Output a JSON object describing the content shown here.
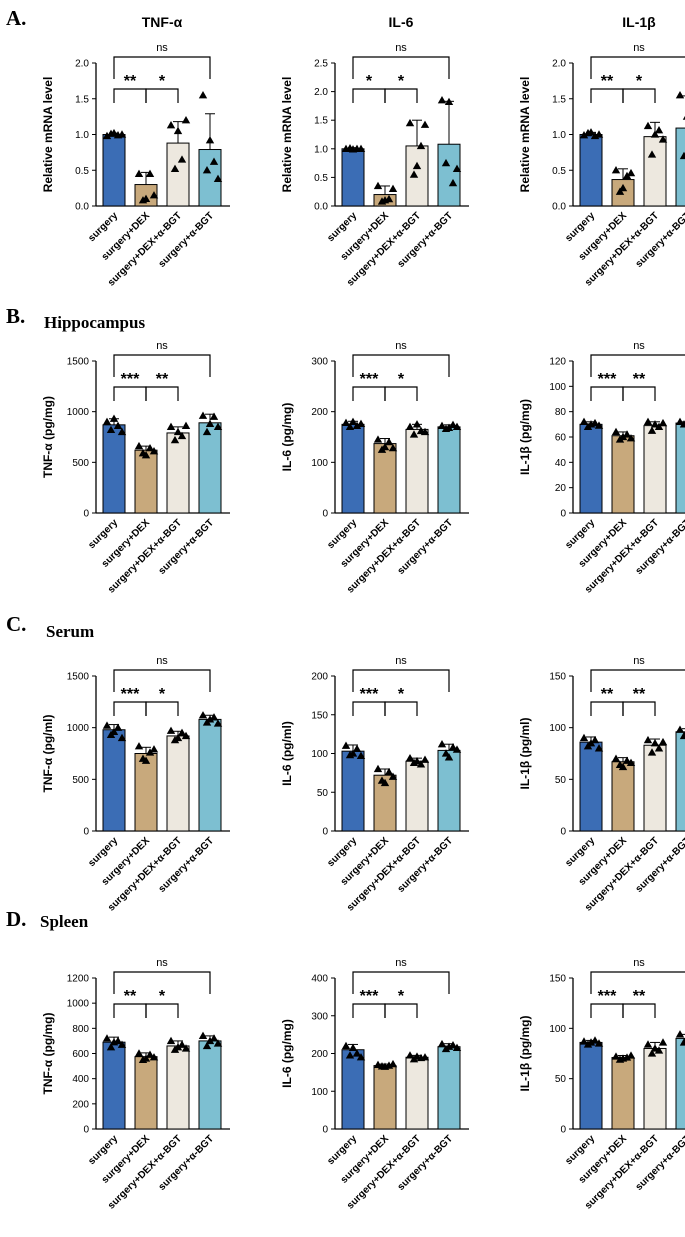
{
  "panels": [
    {
      "letter": "A.",
      "title": ""
    },
    {
      "letter": "B.",
      "title": "Hippocampus"
    },
    {
      "letter": "C.",
      "title": "Serum"
    },
    {
      "letter": "D.",
      "title": "Spleen"
    }
  ],
  "colors": {
    "surgery": "#3b6db5",
    "dex": "#c8a97c",
    "dex_bgt": "#ede8df",
    "bgt": "#7dbfd1"
  },
  "chart_data": [
    {
      "panel": "A",
      "type": "bar",
      "title": "TNF-α",
      "ylabel": "Relative mRNA level",
      "categories": [
        "surgery",
        "surgery+DEX",
        "surgery+DEX+α-BGT",
        "surgery+α-BGT"
      ],
      "values": [
        1.0,
        0.3,
        0.88,
        0.79
      ],
      "errors": [
        0.02,
        0.17,
        0.3,
        0.5
      ],
      "points": [
        [
          0.98,
          1.01,
          1.02,
          0.99,
          1.0
        ],
        [
          0.45,
          0.08,
          0.1,
          0.45,
          0.15
        ],
        [
          1.13,
          0.52,
          1.05,
          0.65,
          1.2
        ],
        [
          1.55,
          0.5,
          0.92,
          0.62,
          0.38
        ]
      ],
      "ylim": [
        0,
        2.0
      ],
      "ticks": [
        "0.0",
        "0.5",
        "1.0",
        "1.5",
        "2.0"
      ],
      "significance": [
        {
          "from": 0,
          "to": 1,
          "label": "**"
        },
        {
          "from": 1,
          "to": 2,
          "label": "*"
        },
        {
          "from": 0,
          "to": 3,
          "label": "ns"
        }
      ]
    },
    {
      "panel": "A",
      "type": "bar",
      "title": "IL-6",
      "ylabel": "Relative mRNA level",
      "categories": [
        "surgery",
        "surgery+DEX",
        "surgery+DEX+α-BGT",
        "surgery+α-BGT"
      ],
      "values": [
        1.0,
        0.2,
        1.05,
        1.08
      ],
      "errors": [
        0.02,
        0.15,
        0.45,
        0.75
      ],
      "points": [
        [
          1.0,
          1.01,
          0.99,
          1.0,
          1.0
        ],
        [
          0.35,
          0.08,
          0.1,
          0.12,
          0.3
        ],
        [
          1.45,
          0.55,
          0.7,
          1.05,
          1.42
        ],
        [
          1.85,
          0.75,
          1.82,
          0.4,
          0.65
        ]
      ],
      "ylim": [
        0,
        2.5
      ],
      "ticks": [
        "0.0",
        "0.5",
        "1.0",
        "1.5",
        "2.0",
        "2.5"
      ],
      "significance": [
        {
          "from": 0,
          "to": 1,
          "label": "*"
        },
        {
          "from": 1,
          "to": 2,
          "label": "*"
        },
        {
          "from": 0,
          "to": 3,
          "label": "ns"
        }
      ]
    },
    {
      "panel": "A",
      "type": "bar",
      "title": "IL-1β",
      "ylabel": "Relative mRNA level",
      "categories": [
        "surgery",
        "surgery+DEX",
        "surgery+DEX+α-BGT",
        "surgery+α-BGT"
      ],
      "values": [
        1.0,
        0.37,
        0.97,
        1.09
      ],
      "errors": [
        0.03,
        0.15,
        0.2,
        0.45
      ],
      "points": [
        [
          0.99,
          1.02,
          1.03,
          0.98,
          1.0
        ],
        [
          0.5,
          0.2,
          0.25,
          0.42,
          0.46
        ],
        [
          1.12,
          0.72,
          1.0,
          1.06,
          0.93
        ],
        [
          1.55,
          0.7,
          1.25,
          1.1,
          0.68
        ]
      ],
      "ylim": [
        0,
        2.0
      ],
      "ticks": [
        "0.0",
        "0.5",
        "1.0",
        "1.5",
        "2.0"
      ],
      "significance": [
        {
          "from": 0,
          "to": 1,
          "label": "**"
        },
        {
          "from": 1,
          "to": 2,
          "label": "*"
        },
        {
          "from": 0,
          "to": 3,
          "label": "ns"
        }
      ]
    },
    {
      "panel": "B",
      "type": "bar",
      "title": "",
      "ylabel": "TNF-α (pg/mg)",
      "categories": [
        "surgery",
        "surgery+DEX",
        "surgery+DEX+α-BGT",
        "surgery+α-BGT"
      ],
      "values": [
        870,
        620,
        790,
        890
      ],
      "errors": [
        60,
        40,
        60,
        85
      ],
      "points": [
        [
          900,
          820,
          930,
          860,
          800
        ],
        [
          660,
          590,
          570,
          640,
          610
        ],
        [
          850,
          720,
          800,
          760,
          860
        ],
        [
          960,
          800,
          880,
          950,
          850
        ]
      ],
      "ylim": [
        0,
        1500
      ],
      "ticks": [
        "0",
        "500",
        "1000",
        "1500"
      ],
      "significance": [
        {
          "from": 0,
          "to": 1,
          "label": "***"
        },
        {
          "from": 1,
          "to": 2,
          "label": "**"
        },
        {
          "from": 0,
          "to": 3,
          "label": "ns"
        }
      ]
    },
    {
      "panel": "B",
      "type": "bar",
      "title": "",
      "ylabel": "IL-6 (pg/mg)",
      "categories": [
        "surgery",
        "surgery+DEX",
        "surgery+DEX+α-BGT",
        "surgery+α-BGT"
      ],
      "values": [
        175,
        137,
        165,
        170
      ],
      "errors": [
        6,
        10,
        10,
        4
      ],
      "points": [
        [
          178,
          170,
          180,
          172,
          176
        ],
        [
          145,
          125,
          130,
          140,
          128
        ],
        [
          170,
          155,
          175,
          162,
          160
        ],
        [
          172,
          166,
          168,
          174,
          170
        ]
      ],
      "ylim": [
        0,
        300
      ],
      "ticks": [
        "0",
        "100",
        "200",
        "300"
      ],
      "significance": [
        {
          "from": 0,
          "to": 1,
          "label": "***"
        },
        {
          "from": 1,
          "to": 2,
          "label": "*"
        },
        {
          "from": 0,
          "to": 3,
          "label": "ns"
        }
      ]
    },
    {
      "panel": "B",
      "type": "bar",
      "title": "",
      "ylabel": "IL-1β (pg/mg)",
      "categories": [
        "surgery",
        "surgery+DEX",
        "surgery+DEX+α-BGT",
        "surgery+α-BGT"
      ],
      "values": [
        70,
        61,
        69,
        71
      ],
      "errors": [
        2,
        3,
        3,
        1
      ],
      "points": [
        [
          72,
          68,
          70,
          71,
          69
        ],
        [
          64,
          58,
          60,
          62,
          59
        ],
        [
          72,
          65,
          70,
          68,
          71
        ],
        [
          72,
          70,
          71,
          70,
          72
        ]
      ],
      "ylim": [
        0,
        120
      ],
      "ticks": [
        "0",
        "20",
        "40",
        "60",
        "80",
        "100",
        "120"
      ],
      "significance": [
        {
          "from": 0,
          "to": 1,
          "label": "***"
        },
        {
          "from": 1,
          "to": 2,
          "label": "**"
        },
        {
          "from": 0,
          "to": 3,
          "label": "ns"
        }
      ]
    },
    {
      "panel": "C",
      "type": "bar",
      "title": "",
      "ylabel": "TNF-α (pg/ml)",
      "categories": [
        "surgery",
        "surgery+DEX",
        "surgery+DEX+α-BGT",
        "surgery+α-BGT"
      ],
      "values": [
        980,
        750,
        920,
        1080
      ],
      "errors": [
        50,
        60,
        45,
        40
      ],
      "points": [
        [
          1020,
          930,
          960,
          1000,
          900
        ],
        [
          820,
          700,
          680,
          760,
          790
        ],
        [
          970,
          880,
          900,
          950,
          920
        ],
        [
          1120,
          1050,
          1080,
          1100,
          1040
        ]
      ],
      "ylim": [
        0,
        1500
      ],
      "ticks": [
        "0",
        "500",
        "1000",
        "1500"
      ],
      "significance": [
        {
          "from": 0,
          "to": 1,
          "label": "***"
        },
        {
          "from": 1,
          "to": 2,
          "label": "*"
        },
        {
          "from": 0,
          "to": 3,
          "label": "ns"
        }
      ]
    },
    {
      "panel": "C",
      "type": "bar",
      "title": "",
      "ylabel": "IL-6 (pg/ml)",
      "categories": [
        "surgery",
        "surgery+DEX",
        "surgery+DEX+α-BGT",
        "surgery+α-BGT"
      ],
      "values": [
        103,
        72,
        90,
        104
      ],
      "errors": [
        8,
        8,
        4,
        8
      ],
      "points": [
        [
          110,
          98,
          100,
          106,
          97
        ],
        [
          80,
          65,
          62,
          76,
          70
        ],
        [
          94,
          88,
          90,
          86,
          92
        ],
        [
          112,
          100,
          95,
          108,
          105
        ]
      ],
      "ylim": [
        0,
        200
      ],
      "ticks": [
        "0",
        "50",
        "100",
        "150",
        "200"
      ],
      "significance": [
        {
          "from": 0,
          "to": 1,
          "label": "***"
        },
        {
          "from": 1,
          "to": 2,
          "label": "*"
        },
        {
          "from": 0,
          "to": 3,
          "label": "ns"
        }
      ]
    },
    {
      "panel": "C",
      "type": "bar",
      "title": "",
      "ylabel": "IL-1β (pg/ml)",
      "categories": [
        "surgery",
        "surgery+DEX",
        "surgery+DEX+α-BGT",
        "surgery+α-BGT"
      ],
      "values": [
        86,
        67,
        83,
        96
      ],
      "errors": [
        5,
        4,
        6,
        3
      ],
      "points": [
        [
          90,
          82,
          85,
          88,
          80
        ],
        [
          70,
          64,
          62,
          68,
          66
        ],
        [
          88,
          76,
          85,
          80,
          86
        ],
        [
          98,
          92,
          96,
          99,
          94
        ]
      ],
      "ylim": [
        0,
        150
      ],
      "ticks": [
        "0",
        "50",
        "100",
        "150"
      ],
      "significance": [
        {
          "from": 0,
          "to": 1,
          "label": "**"
        },
        {
          "from": 1,
          "to": 2,
          "label": "**"
        },
        {
          "from": 0,
          "to": 3,
          "label": "ns"
        }
      ]
    },
    {
      "panel": "D",
      "type": "bar",
      "title": "",
      "ylabel": "TNF-α (pg/mg)",
      "categories": [
        "surgery",
        "surgery+DEX",
        "surgery+DEX+α-BGT",
        "surgery+α-BGT"
      ],
      "values": [
        690,
        575,
        660,
        700
      ],
      "errors": [
        40,
        30,
        40,
        40
      ],
      "points": [
        [
          720,
          650,
          690,
          700,
          670
        ],
        [
          600,
          550,
          560,
          590,
          570
        ],
        [
          700,
          630,
          650,
          670,
          640
        ],
        [
          740,
          660,
          700,
          720,
          680
        ]
      ],
      "ylim": [
        0,
        1200
      ],
      "ticks": [
        "0",
        "200",
        "400",
        "600",
        "800",
        "1000",
        "1200"
      ],
      "significance": [
        {
          "from": 0,
          "to": 1,
          "label": "**"
        },
        {
          "from": 1,
          "to": 2,
          "label": "*"
        },
        {
          "from": 0,
          "to": 3,
          "label": "ns"
        }
      ]
    },
    {
      "panel": "D",
      "type": "bar",
      "title": "",
      "ylabel": "IL-6 (pg/mg)",
      "categories": [
        "surgery",
        "surgery+DEX",
        "surgery+DEX+α-BGT",
        "surgery+α-BGT"
      ],
      "values": [
        210,
        168,
        190,
        218
      ],
      "errors": [
        14,
        4,
        5,
        8
      ],
      "points": [
        [
          220,
          195,
          215,
          200,
          190
        ],
        [
          170,
          166,
          165,
          168,
          172
        ],
        [
          195,
          185,
          192,
          188,
          190
        ],
        [
          225,
          212,
          218,
          222,
          215
        ]
      ],
      "ylim": [
        0,
        400
      ],
      "ticks": [
        "0",
        "100",
        "200",
        "300",
        "400"
      ],
      "significance": [
        {
          "from": 0,
          "to": 1,
          "label": "***"
        },
        {
          "from": 1,
          "to": 2,
          "label": "*"
        },
        {
          "from": 0,
          "to": 3,
          "label": "ns"
        }
      ]
    },
    {
      "panel": "D",
      "type": "bar",
      "title": "",
      "ylabel": "IL-1β (pg/mg)",
      "categories": [
        "surgery",
        "surgery+DEX",
        "surgery+DEX+α-BGT",
        "surgery+α-BGT"
      ],
      "values": [
        86,
        71,
        80,
        90
      ],
      "errors": [
        2,
        2,
        6,
        4
      ],
      "points": [
        [
          87,
          84,
          86,
          88,
          85
        ],
        [
          72,
          69,
          70,
          71,
          73
        ],
        [
          84,
          75,
          80,
          78,
          86
        ],
        [
          94,
          86,
          90,
          92,
          88
        ]
      ],
      "ylim": [
        0,
        150
      ],
      "ticks": [
        "0",
        "50",
        "100",
        "150"
      ],
      "significance": [
        {
          "from": 0,
          "to": 1,
          "label": "***"
        },
        {
          "from": 1,
          "to": 2,
          "label": "**"
        },
        {
          "from": 0,
          "to": 3,
          "label": "ns"
        }
      ]
    }
  ]
}
